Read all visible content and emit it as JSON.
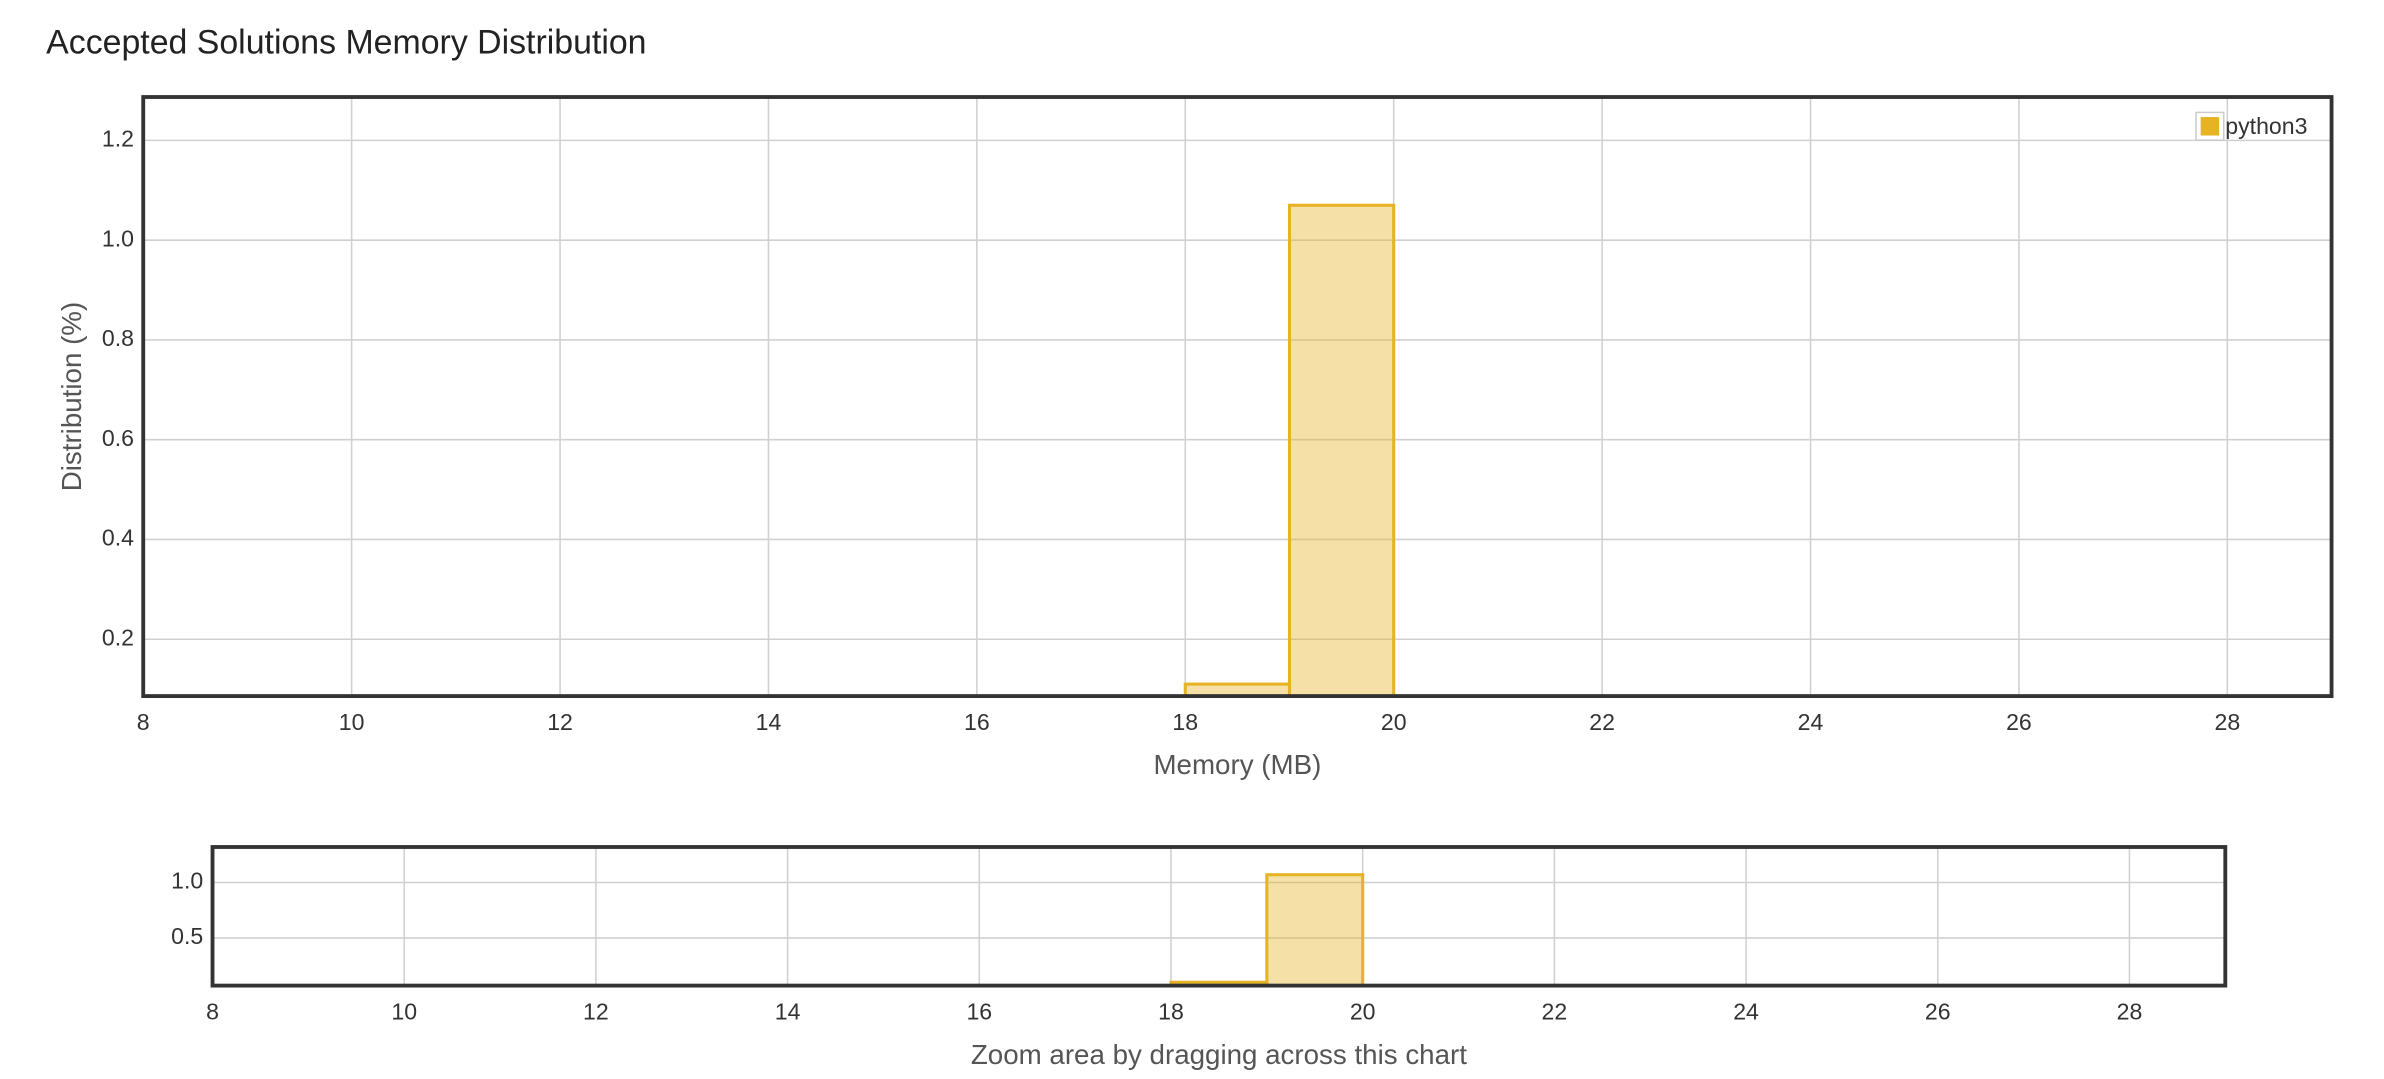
{
  "chart_data": [
    {
      "type": "histogram",
      "title": "Accepted Solutions Memory Distribution",
      "x_label": "Memory (MB)",
      "y_label": "Distribution (%)",
      "bins": [
        18,
        19,
        20
      ],
      "series": [
        {
          "name": "python3",
          "color": "#e6b325",
          "values": [
            0.11,
            1.07
          ]
        }
      ],
      "xlim": [
        8,
        29
      ],
      "xticks": [
        8,
        10,
        12,
        14,
        16,
        18,
        20,
        22,
        24,
        26,
        28
      ],
      "ylim": [
        0.086,
        1.287
      ],
      "yticks": [
        0.2,
        0.4,
        0.6,
        0.8,
        {
          "value": 1,
          "label": "1.0"
        },
        1.2
      ],
      "grid": true,
      "legend": "upper right"
    },
    {
      "type": "histogram",
      "x_label": "Zoom area by dragging across this chart",
      "bins": [
        18,
        19,
        20
      ],
      "values": [
        0.1,
        1.07
      ],
      "color": "#e6b325",
      "xlim": [
        8,
        29
      ],
      "xticks": [
        8,
        10,
        12,
        14,
        16,
        18,
        20,
        22,
        24,
        26,
        28
      ],
      "ylim": [
        0.07,
        1.32
      ],
      "yticks": [
        0.5,
        {
          "value": 1,
          "label": "1.0"
        }
      ],
      "grid": true
    }
  ]
}
